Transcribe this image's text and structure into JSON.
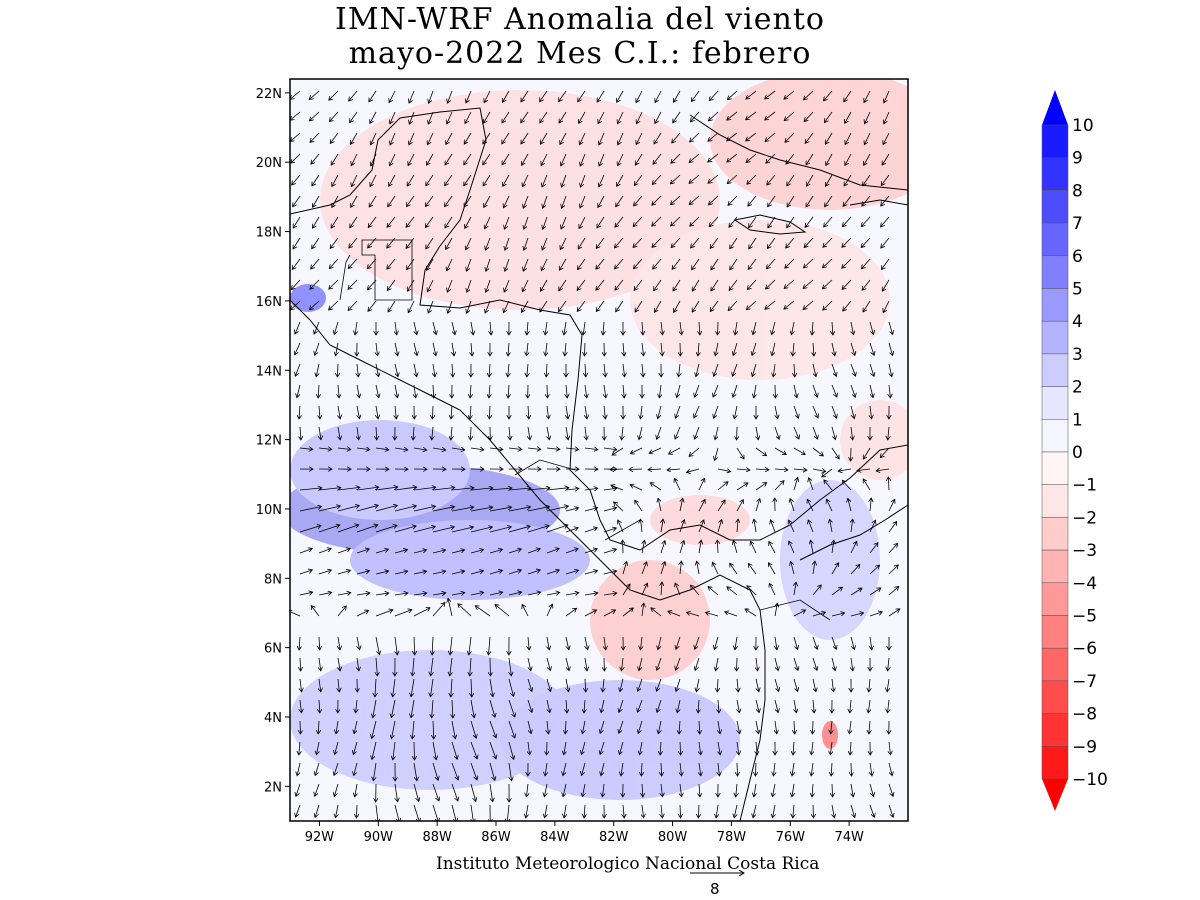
{
  "header": {
    "title_line1": "IMN-WRF Anomalia del viento",
    "title_line2": "mayo-2022 Mes C.I.: febrero"
  },
  "map": {
    "lat_ticks": [
      "2N",
      "4N",
      "6N",
      "8N",
      "10N",
      "12N",
      "14N",
      "16N",
      "18N",
      "20N",
      "22N"
    ],
    "lat_values": [
      2,
      4,
      6,
      8,
      10,
      12,
      14,
      16,
      18,
      20,
      22
    ],
    "lon_ticks": [
      "92W",
      "90W",
      "88W",
      "86W",
      "84W",
      "82W",
      "80W",
      "78W",
      "76W",
      "74W"
    ],
    "lon_values": [
      -92,
      -90,
      -88,
      -86,
      -84,
      -82,
      -80,
      -78,
      -76,
      -74
    ],
    "extent": {
      "lon_min": -93,
      "lon_max": -72,
      "lat_min": 1,
      "lat_max": 22.4
    },
    "vector_field": "wind anomaly arrows"
  },
  "colorbar": {
    "labels": [
      "10",
      "9",
      "8",
      "7",
      "6",
      "5",
      "4",
      "3",
      "2",
      "1",
      "0",
      "−1",
      "−2",
      "−3",
      "−4",
      "−5",
      "−6",
      "−7",
      "−8",
      "−9",
      "−10"
    ],
    "colors": [
      "#1a1aff",
      "#3333ff",
      "#4d4dff",
      "#6666ff",
      "#8080ff",
      "#9999ff",
      "#b3b3ff",
      "#ccccff",
      "#e6e6ff",
      "#f5f5ff",
      "#fff5f5",
      "#ffe6e6",
      "#ffcccc",
      "#ffb3b3",
      "#ff9999",
      "#ff8080",
      "#ff6666",
      "#ff4d4d",
      "#ff3333",
      "#ff1a1a"
    ],
    "top_arrow_color": "#0000ff",
    "bottom_arrow_color": "#ff0000"
  },
  "footer": {
    "credit": "Instituto Meteorologico Nacional Costa Rica",
    "reference_vector_value": "8"
  }
}
